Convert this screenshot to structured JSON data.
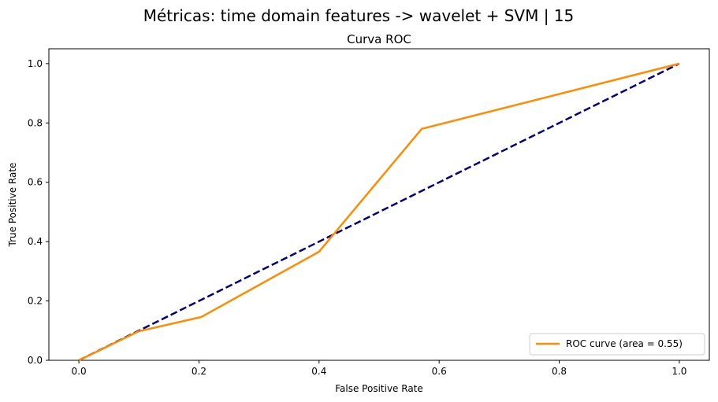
{
  "figure": {
    "suptitle": "Métricas: time domain features -> wavelet + SVM | 15"
  },
  "chart_data": {
    "type": "line",
    "title": "Curva ROC",
    "xlabel": "False Positive Rate",
    "ylabel": "True Positive Rate",
    "xlim": [
      -0.05,
      1.05
    ],
    "ylim": [
      0.0,
      1.05
    ],
    "xticks": [
      0.0,
      0.2,
      0.4,
      0.6,
      0.8,
      1.0
    ],
    "xtick_labels": [
      "0.0",
      "0.2",
      "0.4",
      "0.6",
      "0.8",
      "1.0"
    ],
    "yticks": [
      0.0,
      0.2,
      0.4,
      0.6,
      0.8,
      1.0
    ],
    "ytick_labels": [
      "0.0",
      "0.2",
      "0.4",
      "0.6",
      "0.8",
      "1.0"
    ],
    "grid": false,
    "legend_position": "lower-right",
    "series": [
      {
        "name": "ROC curve (area = 0.55)",
        "color": "#ff8c00",
        "style": "solid",
        "x": [
          0.0,
          0.1,
          0.204,
          0.4,
          0.571,
          1.0
        ],
        "y": [
          0.0,
          0.098,
          0.146,
          0.366,
          0.78,
          1.0
        ]
      },
      {
        "color": "#000080",
        "style": "dashed",
        "x": [
          0.0,
          1.0
        ],
        "y": [
          0.0,
          1.0
        ]
      }
    ]
  }
}
